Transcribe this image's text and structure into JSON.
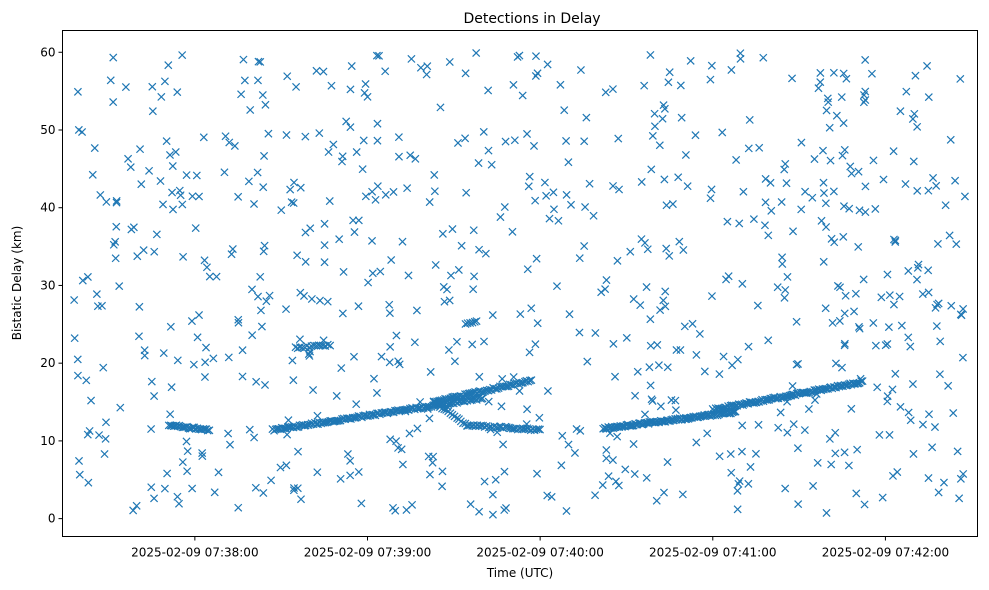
{
  "chart_data": {
    "type": "scatter",
    "title": "Detections in Delay",
    "xlabel": "Time (UTC)",
    "ylabel": "Bistatic Delay (km)",
    "xlim": [
      "2025-02-09 07:37:14",
      "2025-02-09 07:42:32"
    ],
    "ylim": [
      -2.3,
      62.8
    ],
    "xticks": [
      "2025-02-09 07:38:00",
      "2025-02-09 07:39:00",
      "2025-02-09 07:40:00",
      "2025-02-09 07:41:00",
      "2025-02-09 07:42:00"
    ],
    "yticks": [
      0,
      10,
      20,
      30,
      40,
      50,
      60
    ],
    "grid": false,
    "marker": "x",
    "color": "#1f77b4",
    "series": [
      {
        "tracks": [
          {
            "start": "2025-02-09 07:37:51",
            "end": "2025-02-09 07:38:05",
            "y_start": 12.0,
            "y_end": 11.4,
            "count": 28
          },
          {
            "start": "2025-02-09 07:38:27",
            "end": "2025-02-09 07:39:40",
            "y_start": 11.4,
            "y_end": 15.5,
            "count": 140
          },
          {
            "start": "2025-02-09 07:39:23",
            "end": "2025-02-09 07:39:57",
            "y_start": 15.0,
            "y_end": 17.8,
            "count": 60
          },
          {
            "start": "2025-02-09 07:39:23",
            "end": "2025-02-09 07:39:34",
            "y_start": 15.0,
            "y_end": 12.2,
            "count": 16
          },
          {
            "start": "2025-02-09 07:39:35",
            "end": "2025-02-09 07:40:00",
            "y_start": 12.0,
            "y_end": 11.4,
            "count": 40
          },
          {
            "start": "2025-02-09 07:40:22",
            "end": "2025-02-09 07:41:08",
            "y_start": 11.6,
            "y_end": 13.7,
            "count": 110
          },
          {
            "start": "2025-02-09 07:41:00",
            "end": "2025-02-09 07:41:52",
            "y_start": 14.0,
            "y_end": 17.6,
            "count": 110
          },
          {
            "start": "2025-02-09 07:38:35",
            "end": "2025-02-09 07:38:47",
            "y_start": 22.0,
            "y_end": 22.3,
            "count": 16
          },
          {
            "start": "2025-02-09 07:39:34",
            "end": "2025-02-09 07:39:38",
            "y_start": 25.1,
            "y_end": 25.5,
            "count": 6
          }
        ],
        "clutter": {
          "start": "2025-02-09 07:37:18",
          "end": "2025-02-09 07:42:28",
          "y_min": 0.5,
          "y_max": 60.0,
          "count": 760
        }
      }
    ]
  }
}
